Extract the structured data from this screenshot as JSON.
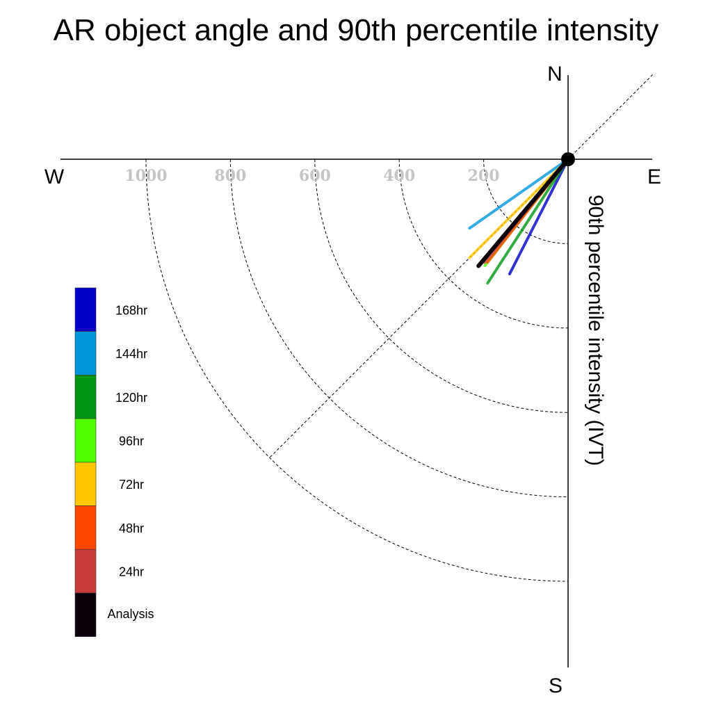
{
  "chart_data": {
    "type": "polar-vector",
    "title": "AR object angle and 90th percentile intensity",
    "ylabel": "90th percentile intensity (IVT)",
    "compass": {
      "north": "N",
      "south": "S",
      "east": "E",
      "west": "W"
    },
    "r_ticks": [
      200,
      400,
      600,
      800,
      1000
    ],
    "r_tick_labels": [
      "200",
      "400",
      "600",
      "800",
      "1000"
    ],
    "r_max": 1200,
    "grid": true,
    "legend_position": "left",
    "series": [
      {
        "name": "168hr",
        "color": "#0000c8",
        "angle_deg": 207,
        "intensity": 305
      },
      {
        "name": "144hr",
        "color": "#0096dc",
        "angle_deg": 235,
        "intensity": 285
      },
      {
        "name": "120hr",
        "color": "#009614",
        "angle_deg": 213,
        "intensity": 350
      },
      {
        "name": "96hr",
        "color": "#50ff00",
        "angle_deg": 218,
        "intensity": 320
      },
      {
        "name": "72hr",
        "color": "#ffc800",
        "angle_deg": 225,
        "intensity": 330
      },
      {
        "name": "48hr",
        "color": "#ff4600",
        "angle_deg": 218,
        "intensity": 310
      },
      {
        "name": "24hr",
        "color": "#c83c3c",
        "angle_deg": 219,
        "intensity": 315
      },
      {
        "name": "Analysis",
        "color": "#0a000a",
        "angle_deg": 220,
        "intensity": 330
      }
    ]
  }
}
